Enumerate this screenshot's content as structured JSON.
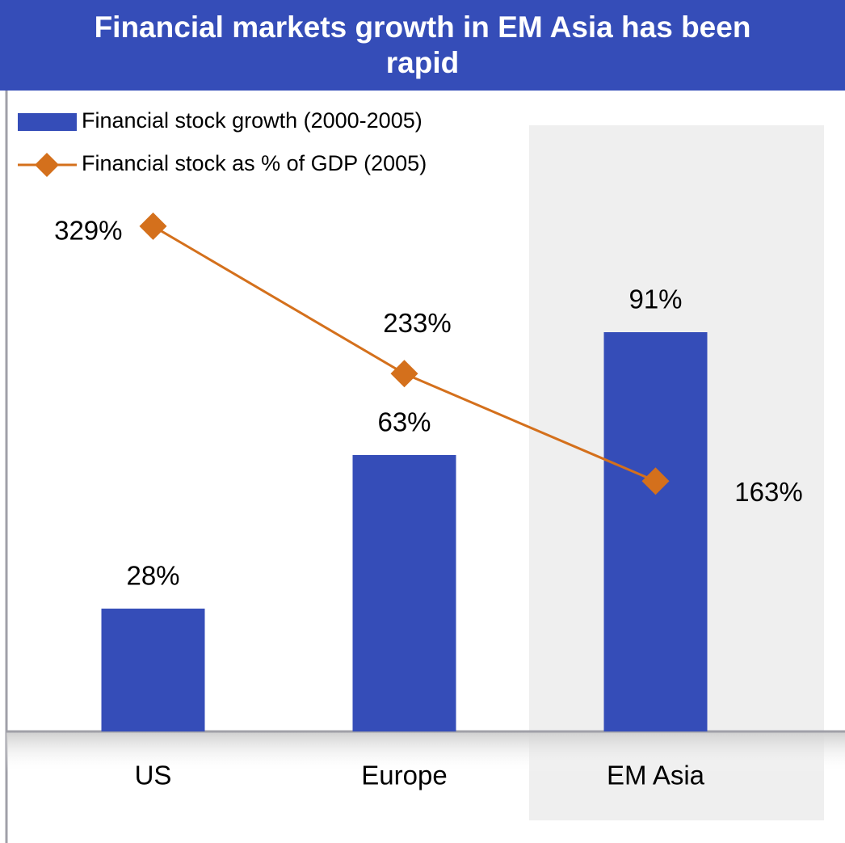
{
  "chart_data": {
    "type": "bar-line",
    "title": "Financial markets growth in EM Asia has been rapid",
    "categories": [
      "US",
      "Europe",
      "EM Asia"
    ],
    "series": [
      {
        "name": "Financial stock growth (2000-2005)",
        "type": "bar",
        "color": "#354db8",
        "values": [
          28,
          63,
          91
        ],
        "value_labels": [
          "28%",
          "63%",
          "91%"
        ]
      },
      {
        "name": "Financial stock as % of GDP (2005)",
        "type": "line",
        "axis": "y2",
        "color": "#d4701c",
        "values": [
          329,
          233,
          163
        ],
        "value_labels": [
          "329%",
          "233%",
          "163%"
        ]
      }
    ],
    "ylim": [
      0,
      140
    ],
    "y2lim": [
      0,
      400
    ],
    "legend": "top-left",
    "grid": false
  }
}
